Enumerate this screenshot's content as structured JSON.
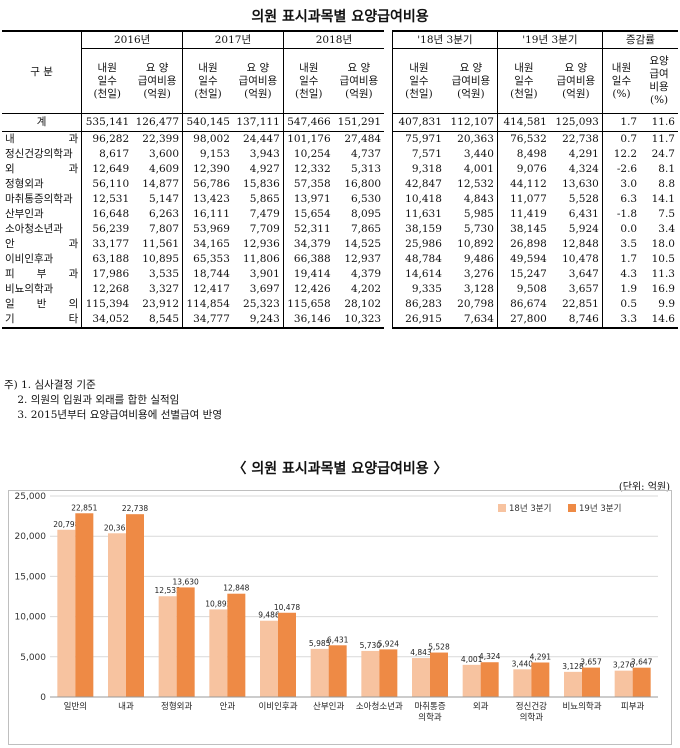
{
  "table_title": "의원 표시과목별 요양급여비용",
  "table": {
    "col_header_label": "구  분",
    "groups": [
      "2016년",
      "2017년",
      "2018년",
      "'18년 3분기",
      "'19년 3분기",
      "증감률"
    ],
    "sub_headers": {
      "days": "내원\n일수\n(천일)",
      "cost": "요  양\n급여비용\n(억원)",
      "rate_days": "내원\n일수\n(%)",
      "rate_cost": "요양\n급여\n비용\n(%)"
    },
    "total": {
      "label": "계",
      "values": [
        "535,141",
        "126,477",
        "540,145",
        "137,111",
        "547,466",
        "151,291",
        "407,831",
        "112,107",
        "414,581",
        "125,093",
        "1.7",
        "11.6"
      ]
    },
    "rows": [
      {
        "label": "내      과",
        "values": [
          "96,282",
          "22,399",
          "98,002",
          "24,447",
          "101,176",
          "27,484",
          "75,971",
          "20,363",
          "76,532",
          "22,738",
          "0.7",
          "11.7"
        ]
      },
      {
        "label": "정신건강의학과",
        "values": [
          "8,617",
          "3,600",
          "9,153",
          "3,943",
          "10,254",
          "4,737",
          "7,571",
          "3,440",
          "8,498",
          "4,291",
          "12.2",
          "24.7"
        ]
      },
      {
        "label": "외      과",
        "values": [
          "12,649",
          "4,609",
          "12,390",
          "4,927",
          "12,332",
          "5,313",
          "9,318",
          "4,001",
          "9,076",
          "4,324",
          "-2.6",
          "8.1"
        ]
      },
      {
        "label": "정형외과",
        "values": [
          "56,110",
          "14,877",
          "56,786",
          "15,836",
          "57,358",
          "16,800",
          "42,847",
          "12,532",
          "44,112",
          "13,630",
          "3.0",
          "8.8"
        ]
      },
      {
        "label": "마취통증의학과",
        "values": [
          "12,531",
          "5,147",
          "13,423",
          "5,865",
          "13,971",
          "6,530",
          "10,418",
          "4,843",
          "11,077",
          "5,528",
          "6.3",
          "14.1"
        ]
      },
      {
        "label": "산부인과",
        "values": [
          "16,648",
          "6,263",
          "16,111",
          "7,479",
          "15,654",
          "8,095",
          "11,631",
          "5,985",
          "11,419",
          "6,431",
          "-1.8",
          "7.5"
        ]
      },
      {
        "label": "소아청소년과",
        "values": [
          "56,239",
          "7,807",
          "53,969",
          "7,709",
          "52,311",
          "7,865",
          "38,159",
          "5,730",
          "38,145",
          "5,924",
          "0.0",
          "3.4"
        ]
      },
      {
        "label": "안      과",
        "values": [
          "33,177",
          "11,561",
          "34,165",
          "12,936",
          "34,379",
          "14,525",
          "25,986",
          "10,892",
          "26,898",
          "12,848",
          "3.5",
          "18.0"
        ]
      },
      {
        "label": "이비인후과",
        "values": [
          "63,188",
          "10,895",
          "65,353",
          "11,806",
          "66,388",
          "12,937",
          "48,784",
          "9,486",
          "49,594",
          "10,478",
          "1.7",
          "10.5"
        ]
      },
      {
        "label": "피  부  과",
        "values": [
          "17,986",
          "3,535",
          "18,744",
          "3,901",
          "19,414",
          "4,379",
          "14,614",
          "3,276",
          "15,247",
          "3,647",
          "4.3",
          "11.3"
        ]
      },
      {
        "label": "비뇨의학과",
        "values": [
          "12,268",
          "3,327",
          "12,417",
          "3,697",
          "12,426",
          "4,202",
          "9,335",
          "3,128",
          "9,508",
          "3,657",
          "1.9",
          "16.9"
        ]
      },
      {
        "label": "일  반  의",
        "values": [
          "115,394",
          "23,912",
          "114,854",
          "25,323",
          "115,658",
          "28,102",
          "86,283",
          "20,798",
          "86,674",
          "22,851",
          "0.5",
          "9.9"
        ]
      },
      {
        "label": "기      타",
        "values": [
          "34,052",
          "8,545",
          "34,777",
          "9,243",
          "36,146",
          "10,323",
          "26,915",
          "7,634",
          "27,800",
          "8,746",
          "3.3",
          "14.6"
        ]
      }
    ]
  },
  "notes": [
    "주) 1. 심사결정 기준",
    "    2. 의원의 입원과 외래를 합한 실적임",
    "    3. 2015년부터 요양급여비용에 선별급여 반영"
  ],
  "chart_title": "〈  의원  표시과목별  요양급여비용  〉",
  "unit_label": "(단위: 억원)",
  "colors": {
    "series1": "#f7c3a0",
    "series2": "#ee8a45",
    "grid": "#d9d9d9"
  },
  "chart_data": {
    "type": "bar",
    "categories": [
      "일반의",
      "내과",
      "정형외과",
      "안과",
      "이비인후과",
      "산부인과",
      "소아청소년과",
      "마취통증\n의학과",
      "외과",
      "정신건강\n의학과",
      "비뇨의학과",
      "피부과"
    ],
    "series": [
      {
        "name": "18년 3분기",
        "values": [
          20798,
          20363,
          12532,
          10892,
          9486,
          5985,
          5730,
          4843,
          4001,
          3440,
          3128,
          3276
        ]
      },
      {
        "name": "19년 3분기",
        "values": [
          22851,
          22738,
          13630,
          12848,
          10478,
          6431,
          5924,
          5528,
          4324,
          4291,
          3657,
          3647
        ]
      }
    ],
    "ylim": [
      0,
      25000
    ],
    "yticks": [
      0,
      5000,
      10000,
      15000,
      20000,
      25000
    ],
    "legend": "top-right",
    "grid": true
  }
}
